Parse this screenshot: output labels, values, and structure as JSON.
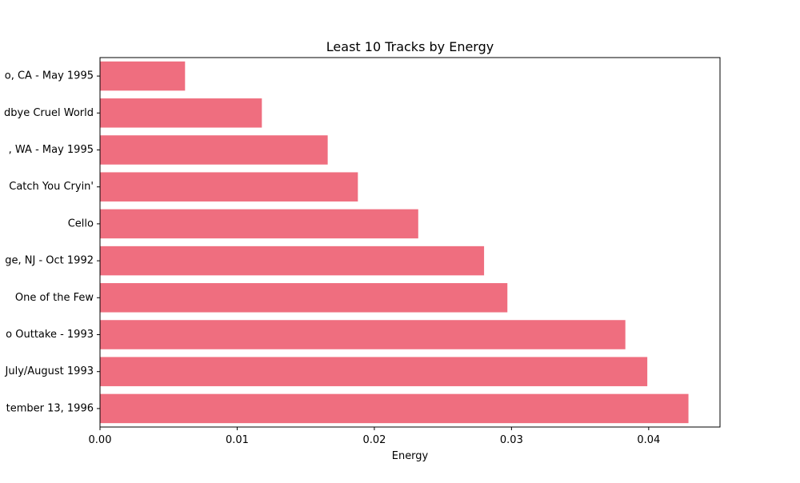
{
  "chart_data": {
    "type": "bar",
    "orientation": "horizontal",
    "title": "Least 10 Tracks by Energy",
    "xlabel": "Energy",
    "ylabel": "",
    "xlim": [
      0,
      0.0452
    ],
    "x_ticks": [
      0.0,
      0.01,
      0.02,
      0.03,
      0.04
    ],
    "x_tick_labels": [
      "0.00",
      "0.01",
      "0.02",
      "0.03",
      "0.04"
    ],
    "categories": [
      "o, CA - May 1995",
      "dbye Cruel World",
      ", WA - May 1995",
      "Catch You Cryin'",
      "Cello",
      "ge, NJ - Oct 1992",
      "One of the Few",
      "o Outtake - 1993",
      "July/August 1993",
      "tember 13, 1996"
    ],
    "values": [
      0.0062,
      0.0118,
      0.0166,
      0.0188,
      0.0232,
      0.028,
      0.0297,
      0.0383,
      0.0399,
      0.0429
    ],
    "bar_color": "#ef6e7f",
    "grid": false,
    "legend": "none"
  }
}
